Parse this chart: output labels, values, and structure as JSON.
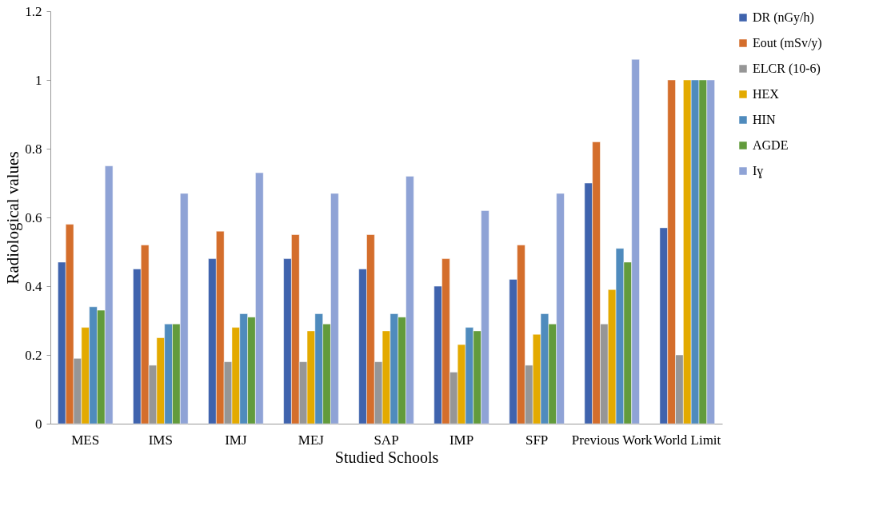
{
  "chart_data": {
    "type": "bar",
    "xlabel": "Studied Schools",
    "ylabel": "Radiological values",
    "categories": [
      "MES",
      "IMS",
      "IMJ",
      "MEJ",
      "SAP",
      "IMP",
      "SFP",
      "Previous Work",
      "World Limit"
    ],
    "series": [
      {
        "name": "DR (nGy/h)",
        "color": "#3f63ad",
        "values": [
          0.47,
          0.45,
          0.48,
          0.48,
          0.45,
          0.4,
          0.42,
          0.7,
          0.57
        ]
      },
      {
        "name": "Eout (mSv/y)",
        "color": "#d46e2c",
        "values": [
          0.58,
          0.52,
          0.56,
          0.55,
          0.55,
          0.48,
          0.52,
          0.82,
          1.0
        ]
      },
      {
        "name": "ELCR (10-6)",
        "color": "#969696",
        "values": [
          0.19,
          0.17,
          0.18,
          0.18,
          0.18,
          0.15,
          0.17,
          0.29,
          0.2
        ]
      },
      {
        "name": "HEX",
        "color": "#e3aa00",
        "values": [
          0.28,
          0.25,
          0.28,
          0.27,
          0.27,
          0.23,
          0.26,
          0.39,
          1.0
        ]
      },
      {
        "name": "HIN",
        "color": "#4f8bbd",
        "values": [
          0.34,
          0.29,
          0.32,
          0.32,
          0.32,
          0.28,
          0.32,
          0.51,
          1.0
        ]
      },
      {
        "name": "AGDE",
        "color": "#629b3c",
        "values": [
          0.33,
          0.29,
          0.31,
          0.29,
          0.31,
          0.27,
          0.29,
          0.47,
          1.0
        ]
      },
      {
        "name": "Iɣ",
        "color": "#8fa3d6",
        "values": [
          0.75,
          0.67,
          0.73,
          0.67,
          0.72,
          0.62,
          0.67,
          1.06,
          1.0
        ]
      }
    ],
    "ylim": [
      0,
      1.2
    ],
    "yticks": [
      0,
      0.2,
      0.4,
      0.6,
      0.8,
      1,
      1.2
    ],
    "grid": false,
    "legend": "top right"
  }
}
